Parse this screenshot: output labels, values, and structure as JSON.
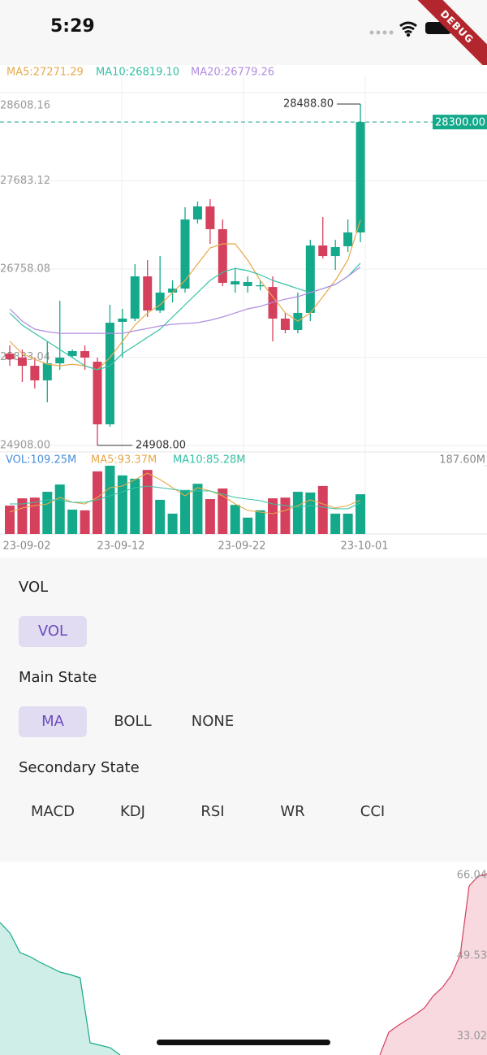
{
  "status_bar": {
    "time": "5:29",
    "banner": "DEBUG"
  },
  "chart_data": [
    {
      "type": "candlestick",
      "x_labels": [
        "23-09-02",
        "23-09-12",
        "23-09-22",
        "23-10-01"
      ],
      "up_color": "#14a98b",
      "down_color": "#d5405d",
      "open": [
        25871,
        25829,
        25743,
        25590,
        25769,
        25846,
        25897,
        25786,
        25129,
        26204,
        26238,
        26681,
        26323,
        26511,
        26553,
        27278,
        27415,
        27176,
        26596,
        26579,
        26588,
        26570,
        26238,
        26119,
        26298,
        27005,
        26894,
        26997,
        27142
      ],
      "close": [
        25812,
        25743,
        25590,
        25769,
        25829,
        25897,
        25829,
        25129,
        26195,
        26238,
        26681,
        26323,
        26511,
        26553,
        27278,
        27415,
        27176,
        26613,
        26630,
        26622,
        26588,
        26238,
        26119,
        26298,
        27005,
        26894,
        26988,
        27142,
        28300
      ],
      "high": [
        25957,
        25914,
        25829,
        25999,
        26425,
        25914,
        25957,
        25829,
        26383,
        26340,
        26809,
        26852,
        26894,
        26639,
        27406,
        27466,
        27491,
        27278,
        26767,
        26681,
        26639,
        26681,
        26298,
        26511,
        27065,
        27304,
        27065,
        27278,
        28488.8
      ],
      "low": [
        25743,
        25573,
        25505,
        25360,
        25701,
        25829,
        25701,
        24908,
        25104,
        25829,
        26212,
        26255,
        26298,
        26408,
        26511,
        27235,
        27022,
        26579,
        26511,
        26511,
        26536,
        25999,
        26084,
        26084,
        26212,
        26869,
        26749,
        26937,
        27039
      ],
      "series": [
        {
          "name": "MA5:27271.29",
          "color": "#e8a94c",
          "values": [
            25999,
            25871,
            25811,
            25760,
            25743,
            25760,
            25743,
            25701,
            25829,
            25999,
            26170,
            26297,
            26383,
            26511,
            26639,
            26809,
            26980,
            27022,
            27022,
            26852,
            26639,
            26468,
            26297,
            26212,
            26297,
            26468,
            26639,
            26852,
            27271.29
          ]
        },
        {
          "name": "MA10:26819.10",
          "color": "#35c2a4",
          "values": [
            26297,
            26170,
            26084,
            25999,
            25914,
            25829,
            25743,
            25701,
            25743,
            25871,
            25956,
            26042,
            26127,
            26255,
            26383,
            26511,
            26639,
            26724,
            26766,
            26741,
            26698,
            26639,
            26596,
            26553,
            26511,
            26553,
            26596,
            26681,
            26819.1
          ]
        },
        {
          "name": "MA20:26779.26",
          "color": "#b38ce0",
          "values": [
            26340,
            26212,
            26127,
            26101,
            26084,
            26084,
            26084,
            26084,
            26084,
            26084,
            26110,
            26135,
            26161,
            26178,
            26187,
            26195,
            26221,
            26255,
            26297,
            26340,
            26366,
            26408,
            26442,
            26468,
            26511,
            26553,
            26596,
            26681,
            26779.26
          ]
        }
      ],
      "ylim": [
        {
          "value": 24908,
          "label": "24908.00"
        },
        28608.16
      ],
      "yticks": [
        28608.16,
        27683.12,
        26758.08,
        25833.04,
        {
          "value": 24908,
          "label": "24908.00"
        }
      ],
      "annotations": {
        "max": {
          "value": 28488.8,
          "label": "28488.80"
        },
        "min": {
          "value": 24908,
          "label": "24908.00"
        },
        "last": {
          "value": 28300,
          "label": "28300.00",
          "color": "#14a98b"
        }
      },
      "grid": true
    },
    {
      "type": "bar",
      "name": "VOL:109.25M",
      "name_color": "#4a90d9",
      "values": [
        78,
        98,
        100,
        116,
        136,
        67,
        65,
        172,
        187.6,
        161,
        152,
        176,
        94,
        56,
        121,
        138,
        96,
        125,
        80,
        45,
        65,
        98,
        100,
        116,
        114,
        132,
        56,
        56,
        109.25
      ],
      "series": [
        {
          "name": "MA5:93.37M",
          "color": "#e8a94c",
          "values": [
            60.3,
            71.5,
            78.2,
            82.6,
            100.5,
            87.1,
            82.6,
            100.5,
            127.3,
            131.7,
            149.6,
            167.5,
            149.6,
            127.3,
            105,
            127.3,
            118.3,
            105,
            82.6,
            64.8,
            60.3,
            55.8,
            64.8,
            78.2,
            93.8,
            82.6,
            71.5,
            78.2,
            93.37
          ]
        },
        {
          "name": "MA10:85.28M",
          "color": "#35c2a4",
          "values": [
            82.6,
            82.6,
            87.1,
            93.8,
            93.8,
            87.1,
            87.1,
            93.8,
            105,
            116.1,
            127.3,
            131.7,
            127.3,
            122.8,
            118.3,
            118.3,
            118.3,
            109.4,
            100.5,
            96,
            91.6,
            82.6,
            78.2,
            73.7,
            78.2,
            73.7,
            69.2,
            69.2,
            85.28
          ]
        }
      ],
      "ylim": [
        0,
        187.6
      ],
      "yticks": [
        {
          "value": 187.6,
          "label": "187.60M"
        }
      ]
    },
    {
      "type": "area",
      "series": [
        {
          "color": "#14a98b",
          "values": [
            56.37,
            54.2,
            50.2,
            49.37,
            48.2,
            47.2,
            46.2,
            45.7,
            45.03,
            31.69,
            31.19,
            30.69,
            29.18
          ]
        },
        {
          "color": "#d5405d",
          "values": [
            29.18,
            33.85,
            35.19,
            36.36,
            37.52,
            38.86,
            41.36,
            43.03,
            45.53,
            49.7,
            63.87,
            65.87,
            66.37
          ]
        }
      ],
      "ylim": [
        33.02,
        66.04
      ],
      "yticks": [
        66.04,
        49.53,
        33.02
      ]
    }
  ],
  "controls": {
    "groups": [
      {
        "title": "VOL",
        "options": [
          "VOL"
        ],
        "selected": 0
      },
      {
        "title": "Main State",
        "options": [
          "MA",
          "BOLL",
          "NONE"
        ],
        "selected": 0
      },
      {
        "title": "Secondary State",
        "options": [
          "MACD",
          "KDJ",
          "RSI",
          "WR",
          "CCI"
        ],
        "selected": null
      }
    ]
  }
}
